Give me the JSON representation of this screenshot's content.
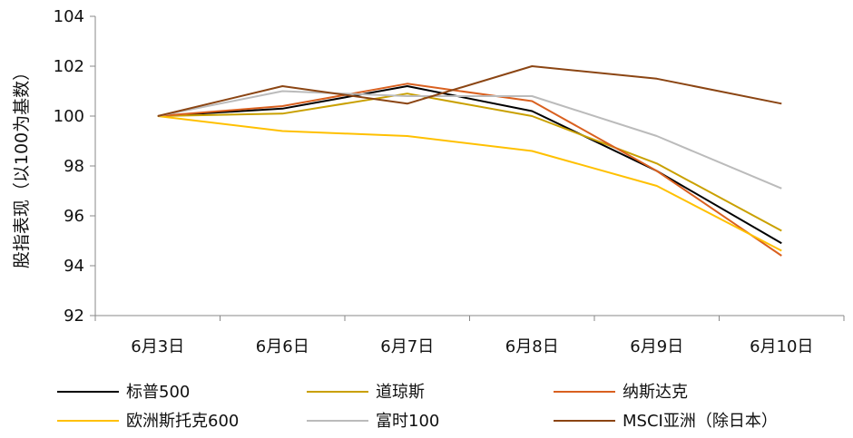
{
  "chart_data": {
    "type": "line",
    "title": "",
    "ylabel": "股指表现（以100为基数）",
    "xlabel": "",
    "ylim": [
      92,
      104
    ],
    "yticks": [
      92,
      94,
      96,
      98,
      100,
      102,
      104
    ],
    "categories": [
      "6月3日",
      "6月6日",
      "6月7日",
      "6月8日",
      "6月9日",
      "6月10日"
    ],
    "grid": false,
    "legend_position": "bottom",
    "series": [
      {
        "name": "标普500",
        "color": "#000000",
        "values": [
          100.0,
          100.3,
          101.2,
          100.2,
          97.8,
          94.9
        ]
      },
      {
        "name": "道琼斯",
        "color": "#C9A000",
        "values": [
          100.0,
          100.1,
          100.9,
          100.0,
          98.1,
          95.4
        ]
      },
      {
        "name": "纳斯达克",
        "color": "#D9601F",
        "values": [
          100.0,
          100.4,
          101.3,
          100.6,
          97.8,
          94.4
        ]
      },
      {
        "name": "欧洲斯托克600",
        "color": "#FFC000",
        "values": [
          100.0,
          99.4,
          99.2,
          98.6,
          97.2,
          94.6
        ]
      },
      {
        "name": "富时100",
        "color": "#BBBBBB",
        "values": [
          100.0,
          101.0,
          100.8,
          100.8,
          99.2,
          97.1
        ]
      },
      {
        "name": "MSCI亚洲（除日本）",
        "color": "#8B4513",
        "values": [
          100.0,
          101.2,
          100.5,
          102.0,
          101.5,
          100.5
        ]
      }
    ]
  }
}
